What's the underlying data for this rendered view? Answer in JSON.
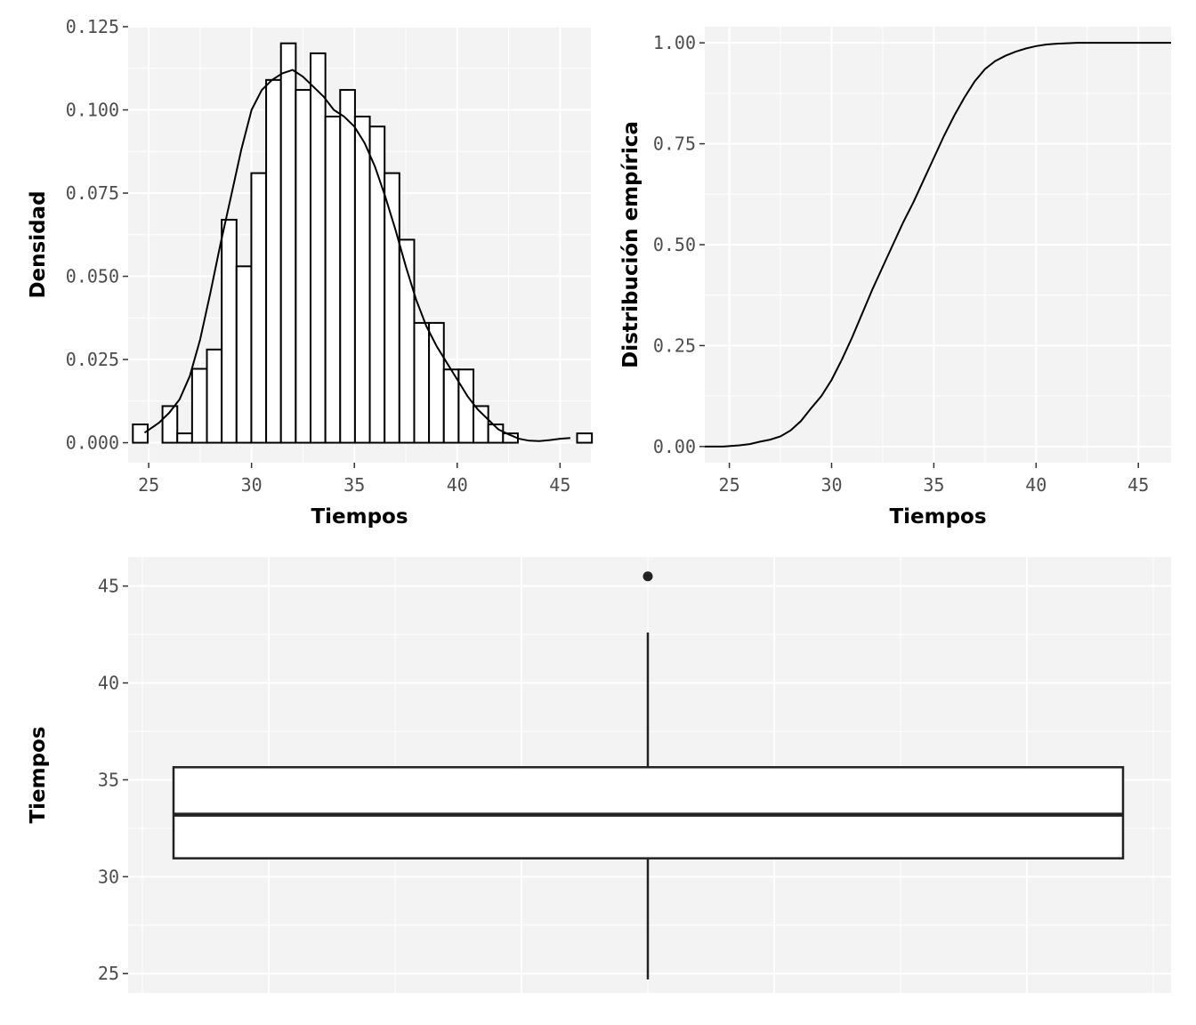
{
  "chart_data": [
    {
      "type": "bar",
      "subtype": "histogram-with-density",
      "xlabel": "Tiempos",
      "ylabel": "Densidad",
      "xlim": [
        24,
        46.5
      ],
      "ylim": [
        -0.006,
        0.125
      ],
      "x_ticks": [
        25,
        30,
        35,
        40,
        45
      ],
      "y_ticks": [
        0.0,
        0.025,
        0.05,
        0.075,
        0.1,
        0.125
      ],
      "y_tick_labels": [
        "0.000",
        "0.025",
        "0.050",
        "0.075",
        "0.100",
        "0.125"
      ],
      "grid": true,
      "bin_width": 0.72,
      "bin_start": 24.23,
      "values": [
        0.0055,
        0.0,
        0.011,
        0.0028,
        0.0222,
        0.028,
        0.067,
        0.053,
        0.081,
        0.109,
        0.12,
        0.106,
        0.117,
        0.098,
        0.106,
        0.098,
        0.095,
        0.081,
        0.061,
        0.036,
        0.036,
        0.022,
        0.022,
        0.011,
        0.0055,
        0.0028,
        0.0,
        0.0,
        0.0,
        0.0,
        0.0028
      ],
      "density_curve": {
        "x": [
          24.8,
          25.5,
          26,
          26.5,
          27,
          27.5,
          28,
          28.5,
          29,
          29.5,
          30,
          30.5,
          31,
          31.5,
          32,
          32.5,
          33,
          33.5,
          34,
          34.5,
          35,
          35.5,
          36,
          36.5,
          37,
          37.5,
          38,
          38.5,
          39,
          39.5,
          40,
          40.5,
          41,
          41.5,
          42,
          42.5,
          43,
          43.5,
          44,
          44.5,
          45,
          45.5
        ],
        "y": [
          0.003,
          0.006,
          0.009,
          0.013,
          0.02,
          0.031,
          0.045,
          0.06,
          0.074,
          0.088,
          0.1,
          0.106,
          0.109,
          0.111,
          0.112,
          0.11,
          0.107,
          0.104,
          0.1,
          0.098,
          0.095,
          0.09,
          0.083,
          0.074,
          0.064,
          0.053,
          0.043,
          0.035,
          0.029,
          0.024,
          0.019,
          0.014,
          0.01,
          0.007,
          0.004,
          0.0025,
          0.0012,
          0.0006,
          0.0005,
          0.0008,
          0.0012,
          0.0014
        ]
      }
    },
    {
      "type": "line",
      "subtype": "ecdf",
      "xlabel": "Tiempos",
      "ylabel": "Distribución empírica",
      "xlim": [
        23.8,
        46.6
      ],
      "ylim": [
        -0.04,
        1.04
      ],
      "x_ticks": [
        25,
        30,
        35,
        40,
        45
      ],
      "y_ticks": [
        0.0,
        0.25,
        0.5,
        0.75,
        1.0
      ],
      "y_tick_labels": [
        "0.00",
        "0.25",
        "0.50",
        "0.75",
        "1.00"
      ],
      "grid": true,
      "x": [
        23.8,
        24.7,
        25.5,
        26,
        26.5,
        27,
        27.5,
        28,
        28.5,
        29,
        29.5,
        30,
        30.5,
        31,
        31.5,
        32,
        32.5,
        33,
        33.5,
        34,
        34.5,
        35,
        35.5,
        36,
        36.5,
        37,
        37.5,
        38,
        38.5,
        39,
        39.5,
        40,
        40.5,
        41,
        41.5,
        42,
        42.5,
        43,
        44,
        45,
        46.6
      ],
      "y": [
        0.0,
        0.0,
        0.003,
        0.006,
        0.012,
        0.017,
        0.025,
        0.04,
        0.063,
        0.095,
        0.125,
        0.165,
        0.215,
        0.27,
        0.33,
        0.39,
        0.445,
        0.5,
        0.555,
        0.605,
        0.66,
        0.715,
        0.77,
        0.82,
        0.865,
        0.905,
        0.935,
        0.955,
        0.968,
        0.978,
        0.986,
        0.992,
        0.996,
        0.998,
        0.999,
        1.0,
        1.0,
        1.0,
        1.0,
        1.0,
        1.0
      ]
    },
    {
      "type": "box",
      "ylabel": "Tiempos",
      "xlabel": "",
      "ylim": [
        24.0,
        46.5
      ],
      "y_ticks": [
        25,
        30,
        35,
        40,
        45
      ],
      "grid": true,
      "min": 24.7,
      "q1": 30.95,
      "median": 33.2,
      "q3": 35.65,
      "max": 42.6,
      "outliers": [
        45.5
      ]
    }
  ]
}
